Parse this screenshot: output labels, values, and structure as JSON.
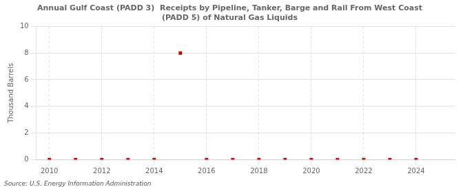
{
  "chart_data": {
    "type": "scatter",
    "title": "Annual Gulf Coast (PADD 3)  Receipts by Pipeline, Tanker, Barge and Rail From West Coast\n(PADD 5) of Natural Gas Liquids",
    "ylabel": "Thousand Barrels",
    "source": "Source: U.S. Energy Information Administration",
    "x": [
      2010,
      2011,
      2012,
      2013,
      2014,
      2015,
      2016,
      2017,
      2018,
      2019,
      2020,
      2021,
      2022,
      2023,
      2024
    ],
    "values": [
      0,
      0,
      0,
      0,
      0,
      8,
      0,
      0,
      0,
      0,
      0,
      0,
      0,
      0,
      0
    ],
    "color": "#cc0000",
    "marker": "square",
    "xlim": [
      2009.5,
      2025.5
    ],
    "xticks": [
      2010,
      2012,
      2014,
      2016,
      2018,
      2020,
      2022,
      2024
    ],
    "ylim": [
      0,
      10
    ],
    "yticks": [
      0,
      2,
      4,
      6,
      8,
      10
    ],
    "grid": true
  }
}
